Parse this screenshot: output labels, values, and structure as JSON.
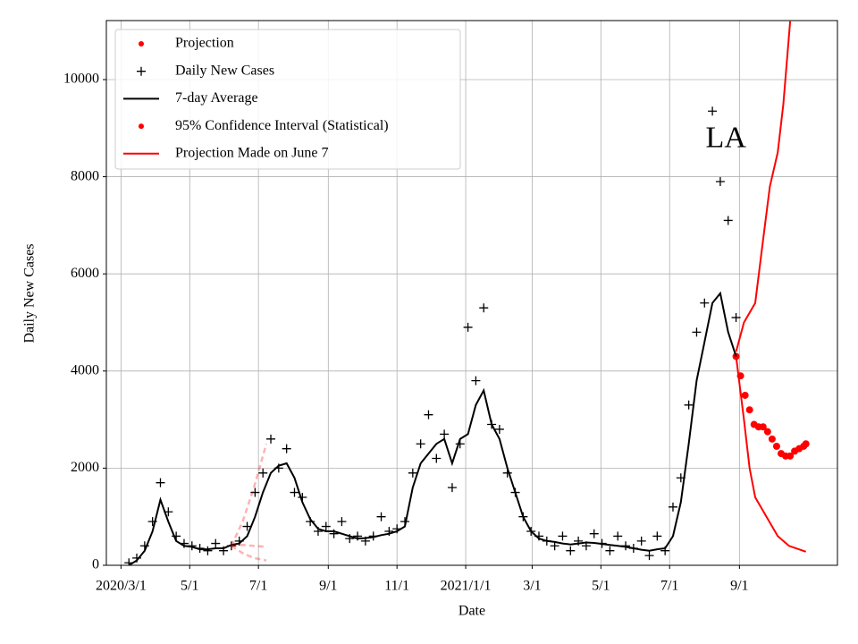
{
  "chart_data": {
    "type": "scatter",
    "ylabel": "Daily New Cases",
    "xlabel": "Date",
    "annotation": {
      "text": "LA",
      "x": "2021-08-20",
      "y": 8750
    },
    "xlim": [
      "2020-02-17",
      "2021-11-27"
    ],
    "ylim": [
      0,
      11215
    ],
    "xticks": [
      {
        "value": "2020-03-01",
        "label": "2020/3/1"
      },
      {
        "value": "2020-05-01",
        "label": "5/1"
      },
      {
        "value": "2020-07-01",
        "label": "7/1"
      },
      {
        "value": "2020-09-01",
        "label": "9/1"
      },
      {
        "value": "2020-11-01",
        "label": "11/1"
      },
      {
        "value": "2021-01-01",
        "label": "2021/1/1"
      },
      {
        "value": "2021-03-01",
        "label": "3/1"
      },
      {
        "value": "2021-05-01",
        "label": "5/1"
      },
      {
        "value": "2021-07-01",
        "label": "7/1"
      },
      {
        "value": "2021-09-01",
        "label": "9/1"
      }
    ],
    "yticks": [
      0,
      2000,
      4000,
      6000,
      8000,
      10000
    ],
    "grid": true,
    "legend": "upper left",
    "series": [
      {
        "name": "Projection",
        "color": "#ff0000",
        "style": "dots",
        "x": [
          "2021-08-29",
          "2021-09-02",
          "2021-09-06",
          "2021-09-10",
          "2021-09-14",
          "2021-09-18",
          "2021-09-22",
          "2021-09-26",
          "2021-09-30",
          "2021-10-04",
          "2021-10-08",
          "2021-10-12",
          "2021-10-16",
          "2021-10-20",
          "2021-10-24",
          "2021-10-28",
          "2021-10-30"
        ],
        "values": [
          4300,
          3900,
          3500,
          3200,
          2900,
          2850,
          2850,
          2750,
          2600,
          2450,
          2300,
          2250,
          2250,
          2350,
          2400,
          2450,
          2500
        ]
      },
      {
        "name": "Daily New Cases",
        "color": "#000000",
        "style": "plus",
        "x": [
          "2020-03-08",
          "2020-03-15",
          "2020-03-22",
          "2020-03-29",
          "2020-04-05",
          "2020-04-12",
          "2020-04-19",
          "2020-04-26",
          "2020-05-03",
          "2020-05-10",
          "2020-05-17",
          "2020-05-24",
          "2020-05-31",
          "2020-06-07",
          "2020-06-14",
          "2020-06-21",
          "2020-06-28",
          "2020-07-05",
          "2020-07-12",
          "2020-07-19",
          "2020-07-26",
          "2020-08-02",
          "2020-08-09",
          "2020-08-16",
          "2020-08-23",
          "2020-08-30",
          "2020-09-06",
          "2020-09-13",
          "2020-09-20",
          "2020-09-27",
          "2020-10-04",
          "2020-10-11",
          "2020-10-18",
          "2020-10-25",
          "2020-11-01",
          "2020-11-08",
          "2020-11-15",
          "2020-11-22",
          "2020-11-29",
          "2020-12-06",
          "2020-12-13",
          "2020-12-20",
          "2020-12-27",
          "2021-01-03",
          "2021-01-10",
          "2021-01-17",
          "2021-01-24",
          "2021-01-31",
          "2021-02-07",
          "2021-02-14",
          "2021-02-21",
          "2021-02-28",
          "2021-03-07",
          "2021-03-14",
          "2021-03-21",
          "2021-03-28",
          "2021-04-04",
          "2021-04-11",
          "2021-04-18",
          "2021-04-25",
          "2021-05-02",
          "2021-05-09",
          "2021-05-16",
          "2021-05-23",
          "2021-05-30",
          "2021-06-06",
          "2021-06-13",
          "2021-06-20",
          "2021-06-27",
          "2021-07-04",
          "2021-07-11",
          "2021-07-18",
          "2021-07-25",
          "2021-08-01",
          "2021-08-08",
          "2021-08-15",
          "2021-08-22",
          "2021-08-29"
        ],
        "values": [
          50,
          150,
          400,
          900,
          1700,
          1100,
          600,
          450,
          400,
          350,
          300,
          450,
          300,
          400,
          500,
          800,
          1500,
          1900,
          2600,
          2000,
          2400,
          1500,
          1400,
          900,
          700,
          800,
          650,
          900,
          550,
          600,
          500,
          600,
          1000,
          700,
          750,
          900,
          1900,
          2500,
          3100,
          2200,
          2700,
          1600,
          2500,
          4900,
          3800,
          5300,
          2900,
          2800,
          1900,
          1500,
          1000,
          700,
          600,
          500,
          400,
          600,
          300,
          500,
          400,
          650,
          450,
          300,
          600,
          400,
          350,
          500,
          200,
          600,
          300,
          1200,
          1800,
          3300,
          4800,
          5400,
          9350,
          7900,
          7100,
          5100
        ]
      },
      {
        "name": "7-day Average",
        "color": "#000000",
        "style": "line",
        "x": [
          "2020-03-08",
          "2020-03-15",
          "2020-03-22",
          "2020-03-29",
          "2020-04-05",
          "2020-04-12",
          "2020-04-19",
          "2020-04-26",
          "2020-05-03",
          "2020-05-10",
          "2020-05-17",
          "2020-05-24",
          "2020-05-31",
          "2020-06-07",
          "2020-06-14",
          "2020-06-21",
          "2020-06-28",
          "2020-07-05",
          "2020-07-12",
          "2020-07-19",
          "2020-07-26",
          "2020-08-02",
          "2020-08-09",
          "2020-08-16",
          "2020-08-23",
          "2020-08-30",
          "2020-09-06",
          "2020-09-13",
          "2020-09-20",
          "2020-09-27",
          "2020-10-04",
          "2020-10-11",
          "2020-10-18",
          "2020-10-25",
          "2020-11-01",
          "2020-11-08",
          "2020-11-15",
          "2020-11-22",
          "2020-11-29",
          "2020-12-06",
          "2020-12-13",
          "2020-12-20",
          "2020-12-27",
          "2021-01-03",
          "2021-01-10",
          "2021-01-17",
          "2021-01-24",
          "2021-01-31",
          "2021-02-07",
          "2021-02-14",
          "2021-02-21",
          "2021-02-28",
          "2021-03-07",
          "2021-03-14",
          "2021-03-21",
          "2021-03-28",
          "2021-04-04",
          "2021-04-11",
          "2021-04-18",
          "2021-04-25",
          "2021-05-02",
          "2021-05-09",
          "2021-05-16",
          "2021-05-23",
          "2021-05-30",
          "2021-06-06",
          "2021-06-13",
          "2021-06-20",
          "2021-06-27",
          "2021-07-04",
          "2021-07-11",
          "2021-07-18",
          "2021-07-25",
          "2021-08-01",
          "2021-08-08",
          "2021-08-15",
          "2021-08-22",
          "2021-08-29"
        ],
        "values": [
          0,
          100,
          300,
          700,
          1350,
          900,
          500,
          400,
          380,
          330,
          330,
          350,
          350,
          420,
          450,
          600,
          1000,
          1500,
          1900,
          2050,
          2100,
          1800,
          1300,
          950,
          750,
          700,
          700,
          650,
          600,
          550,
          560,
          580,
          620,
          650,
          700,
          800,
          1600,
          2100,
          2300,
          2500,
          2600,
          2100,
          2600,
          2700,
          3300,
          3600,
          2900,
          2600,
          2000,
          1500,
          1000,
          700,
          550,
          500,
          480,
          450,
          430,
          450,
          470,
          460,
          440,
          420,
          400,
          380,
          350,
          320,
          300,
          330,
          350,
          600,
          1300,
          2500,
          3800,
          4600,
          5400,
          5600,
          4800,
          4300
        ]
      },
      {
        "name": "95% Confidence Interval (Statistical)",
        "color": "#ff0000",
        "style": "band-lines",
        "upper_x": [
          "2021-08-29",
          "2021-09-05",
          "2021-09-15",
          "2021-09-22",
          "2021-09-28",
          "2021-10-05",
          "2021-10-10",
          "2021-10-16"
        ],
        "upper": [
          4400,
          5000,
          5400,
          6700,
          7800,
          8500,
          9500,
          11200
        ],
        "lower_x": [
          "2021-08-29",
          "2021-09-05",
          "2021-09-10",
          "2021-09-15",
          "2021-09-25",
          "2021-10-05",
          "2021-10-15",
          "2021-10-30"
        ],
        "lower": [
          4300,
          3000,
          2000,
          1400,
          1000,
          600,
          400,
          280
        ]
      },
      {
        "name": "Projection Made on June 7",
        "color": "#ff0000",
        "style": "faded-dashed",
        "x": [
          "2020-06-07",
          "2020-06-17",
          "2020-06-27",
          "2020-07-08"
        ],
        "values": [
          400,
          420,
          400,
          380
        ],
        "upper": [
          400,
          900,
          1600,
          2500
        ],
        "lower": [
          400,
          250,
          150,
          100
        ]
      }
    ]
  }
}
